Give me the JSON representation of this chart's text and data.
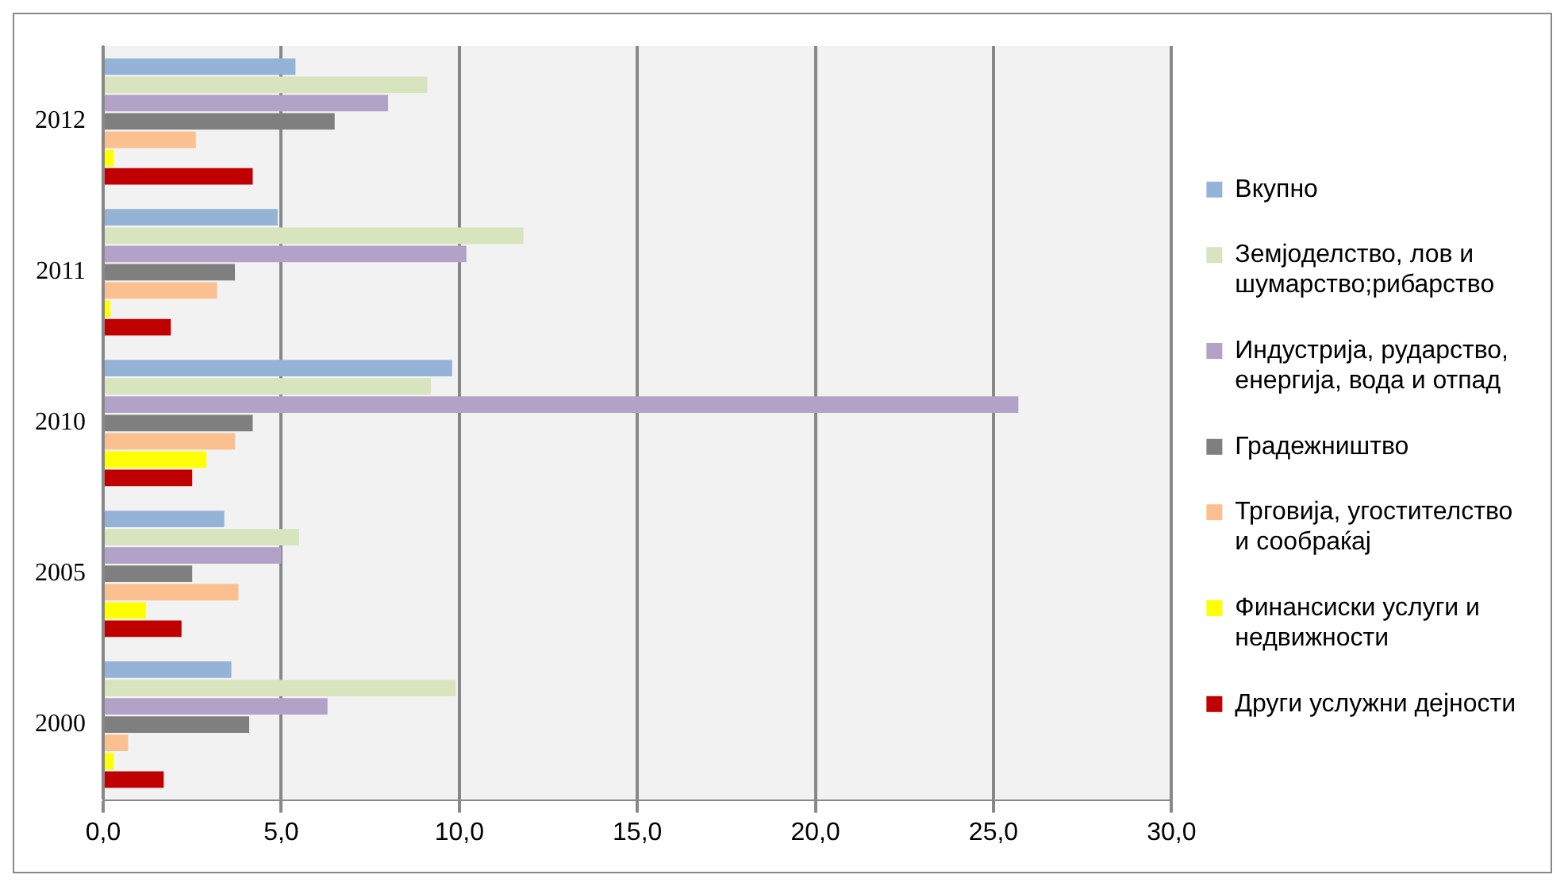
{
  "chart_data": {
    "type": "bar",
    "orientation": "horizontal",
    "categories": [
      "2012",
      "2011",
      "2010",
      "2005",
      "2000"
    ],
    "series": [
      {
        "name": "Вкупно",
        "color": "#95b3d7",
        "values": [
          5.4,
          4.9,
          9.8,
          3.4,
          3.6
        ]
      },
      {
        "name": "Земјоделство, лов и шумарство;рибарство",
        "color": "#d7e4bd",
        "values": [
          9.1,
          11.8,
          9.2,
          5.5,
          9.9
        ]
      },
      {
        "name": "Индустрија, рударство, енергија, вода и отпад",
        "color": "#b3a2c7",
        "values": [
          8.0,
          10.2,
          25.7,
          5.0,
          6.3
        ]
      },
      {
        "name": "Градежништво",
        "color": "#7f7f7f",
        "values": [
          6.5,
          3.7,
          4.2,
          2.5,
          4.1
        ]
      },
      {
        "name": "Трговија, угостителство и сообраќај",
        "color": "#fac090",
        "values": [
          2.6,
          3.2,
          3.7,
          3.8,
          0.7
        ]
      },
      {
        "name": "Финансиски услуги и недвижности",
        "color": "#ffff00",
        "values": [
          0.3,
          0.2,
          2.9,
          1.2,
          0.3
        ]
      },
      {
        "name": "Други услужни дејности",
        "color": "#c00000",
        "values": [
          4.2,
          1.9,
          2.5,
          2.2,
          1.7
        ]
      }
    ],
    "xlim": [
      0,
      30
    ],
    "xticks": [
      {
        "value": 0,
        "label": "0,0"
      },
      {
        "value": 5,
        "label": "5,0"
      },
      {
        "value": 10,
        "label": "10,0"
      },
      {
        "value": 15,
        "label": "15,0"
      },
      {
        "value": 20,
        "label": "20,0"
      },
      {
        "value": 25,
        "label": "25,0"
      },
      {
        "value": 30,
        "label": "30,0"
      }
    ],
    "grid": "x",
    "legend": "right"
  }
}
